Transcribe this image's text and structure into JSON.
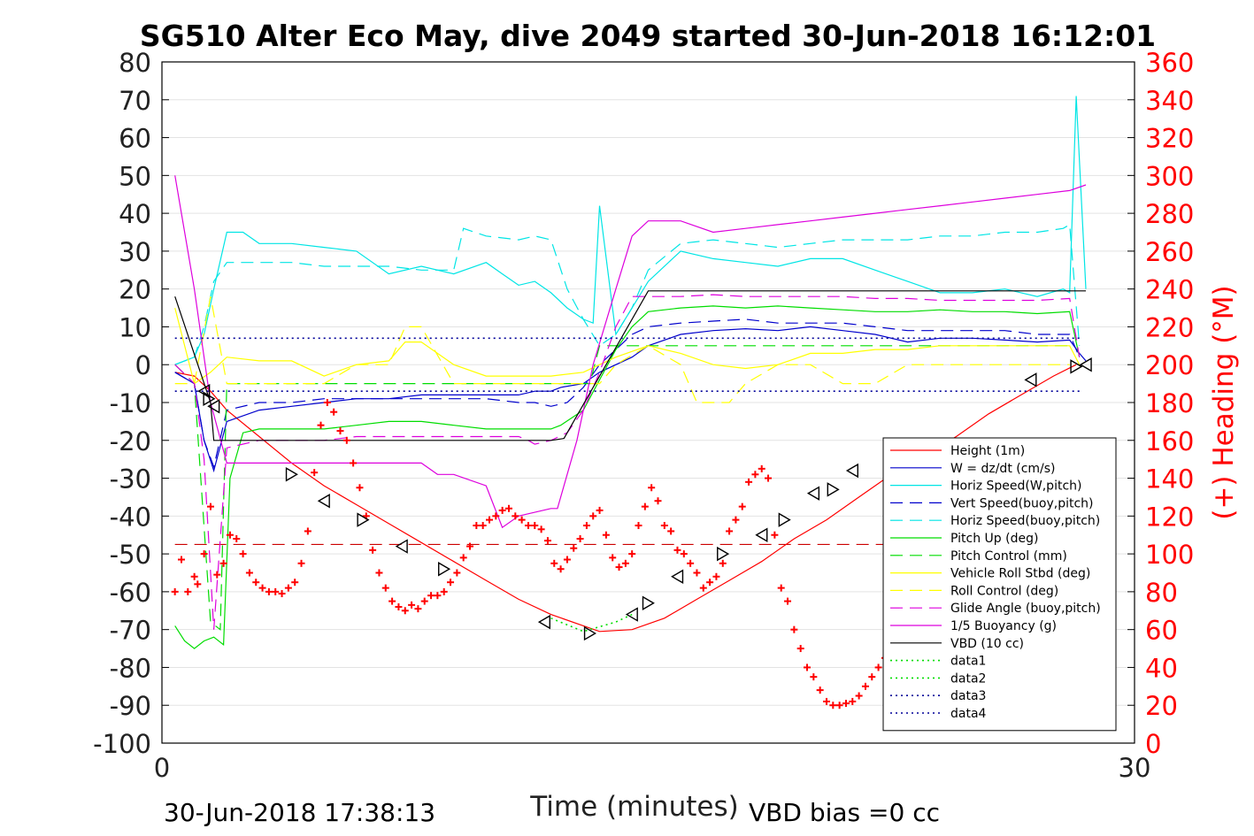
{
  "footer": {
    "timestamp": "30-Jun-2018 17:38:13",
    "vbd_bias": "VBD bias =0 cc"
  },
  "chart_data": {
    "type": "line",
    "title": "SG510 Alter Eco May, dive 2049 started 30-Jun-2018 16:12:01",
    "xlabel": "Time (minutes)",
    "ylabel": "",
    "y2label": "(+) Heading (°M)",
    "xlim": [
      0,
      30
    ],
    "ylim": [
      -100,
      80
    ],
    "y2lim": [
      0,
      360
    ],
    "x_ticks": [
      0,
      30
    ],
    "y_ticks": [
      -100,
      -90,
      -80,
      -70,
      -60,
      -50,
      -40,
      -30,
      -20,
      -10,
      0,
      10,
      20,
      30,
      40,
      50,
      60,
      70,
      80
    ],
    "y2_ticks": [
      0,
      20,
      40,
      60,
      80,
      100,
      120,
      140,
      160,
      180,
      200,
      220,
      240,
      260,
      280,
      300,
      320,
      340,
      360
    ],
    "grid": true,
    "legend_position": "lower-right",
    "colors": {
      "right_axis": "#ff0000",
      "heading_marker": "#ff0000"
    },
    "series": [
      {
        "name": "Height (1m)",
        "color": "#ff0000",
        "dash": "solid",
        "x": [
          0.4,
          1.0,
          1.5,
          2.0,
          3.0,
          4.0,
          5.0,
          6.0,
          7.0,
          8.0,
          9.0,
          10.0,
          11.0,
          12.0,
          13.0,
          13.5,
          14.5,
          15.5,
          16.5,
          17.5,
          18.5,
          19.5,
          20.5,
          21.5,
          22.5,
          23.5,
          24.5,
          25.5,
          26.5,
          27.5,
          28.2
        ],
        "values": [
          -2,
          -3,
          -7,
          -12,
          -19,
          -26,
          -32,
          -37,
          -42,
          -47,
          -52,
          -57,
          -62,
          -66,
          -69,
          -70.5,
          -70,
          -67,
          -62,
          -57,
          -52,
          -46,
          -41,
          -35,
          -29,
          -24,
          -19,
          -13,
          -8,
          -3,
          0
        ]
      },
      {
        "name": "W = dz/dt (cm/s)",
        "color": "#0000cc",
        "dash": "solid",
        "x": [
          0.4,
          1.0,
          1.3,
          1.6,
          2.0,
          3.0,
          4.0,
          5.0,
          6.0,
          7.0,
          8.0,
          9.0,
          10.0,
          11.0,
          11.5,
          12.0,
          12.3,
          13.0,
          13.5,
          14.5,
          15.0,
          16.0,
          17.0,
          18.0,
          19.0,
          20.0,
          21.0,
          22.0,
          23.0,
          24.0,
          25.0,
          26.0,
          27.0,
          28.0,
          28.3,
          28.5
        ],
        "values": [
          -2,
          -5,
          -20,
          -28,
          -15,
          -12,
          -11,
          -10,
          -9,
          -9,
          -8,
          -8,
          -8,
          -8,
          -7,
          -7,
          -6,
          -5,
          -2,
          2,
          5,
          8,
          9,
          9.5,
          9,
          10,
          9,
          8,
          6,
          7,
          7,
          6.5,
          6,
          6.5,
          3,
          1
        ]
      },
      {
        "name": "Horiz Speed(W,pitch)",
        "color": "#00e5e5",
        "dash": "solid",
        "x": [
          0.4,
          1.0,
          1.3,
          1.6,
          2.0,
          2.5,
          3.0,
          4.0,
          5.0,
          6.0,
          7.0,
          8.0,
          9.0,
          10.0,
          10.5,
          11.0,
          11.5,
          12.0,
          12.5,
          13.0,
          13.3,
          13.5,
          14.0,
          14.5,
          15.0,
          16.0,
          17.0,
          18.0,
          19.0,
          20.0,
          21.0,
          22.0,
          23.0,
          24.0,
          25.0,
          26.0,
          27.0,
          27.8,
          28.0,
          28.2,
          28.5
        ],
        "values": [
          0,
          2,
          8,
          20,
          35,
          35,
          32,
          32,
          31,
          30,
          24,
          26,
          24,
          27,
          24,
          21,
          22,
          19,
          15,
          12,
          11,
          42,
          8,
          15,
          22,
          30,
          28,
          27,
          26,
          28,
          28,
          25,
          22,
          19,
          19,
          20,
          18,
          20,
          19,
          71,
          20
        ]
      },
      {
        "name": "Vert Speed(buoy,pitch)",
        "color": "#0000cc",
        "dash": "dashed",
        "x": [
          0.4,
          1.0,
          1.3,
          1.6,
          2.0,
          3.0,
          4.0,
          5.0,
          6.0,
          7.0,
          8.0,
          9.0,
          10.0,
          11.0,
          11.5,
          12.0,
          12.5,
          13.0,
          13.5,
          14.0,
          14.5,
          15.0,
          16.0,
          17.0,
          18.0,
          19.0,
          20.0,
          21.0,
          22.0,
          23.0,
          24.0,
          25.0,
          26.0,
          27.0,
          28.0,
          28.3
        ],
        "values": [
          -2,
          -5,
          -20,
          -27,
          -12,
          -10,
          -10,
          -9,
          -9,
          -9,
          -9,
          -9,
          -9,
          -10,
          -10,
          -11,
          -10,
          -6,
          0,
          4,
          8,
          10,
          11,
          11.5,
          12,
          11,
          11,
          11,
          10,
          9,
          9,
          9,
          9,
          8,
          8,
          2
        ]
      },
      {
        "name": "Horiz Speed(buoy,pitch)",
        "color": "#00e5e5",
        "dash": "dashed",
        "x": [
          0.4,
          1.0,
          1.3,
          1.6,
          2.0,
          3.0,
          4.0,
          5.0,
          6.0,
          7.0,
          8.0,
          9.0,
          9.3,
          10.0,
          11.0,
          11.5,
          12.0,
          12.5,
          13.0,
          13.5,
          14.0,
          14.5,
          15.0,
          16.0,
          17.0,
          18.0,
          19.0,
          20.0,
          21.0,
          22.0,
          23.0,
          24.0,
          25.0,
          26.0,
          27.0,
          27.8,
          28.0,
          28.3
        ],
        "values": [
          0,
          2,
          10,
          22,
          27,
          27,
          27,
          26,
          26,
          26,
          25,
          25,
          36,
          34,
          33,
          34,
          33,
          20,
          12,
          5,
          8,
          15,
          25,
          32,
          33,
          32,
          31,
          32,
          33,
          33,
          33,
          34,
          34,
          35,
          35,
          36,
          37,
          5
        ]
      },
      {
        "name": "Pitch Up (deg)",
        "color": "#00dd00",
        "dash": "solid",
        "x": [
          0.4,
          0.7,
          1.0,
          1.3,
          1.6,
          1.9,
          2.1,
          2.5,
          3.0,
          4.0,
          5.0,
          6.0,
          7.0,
          8.0,
          9.0,
          10.0,
          11.0,
          12.0,
          12.3,
          13.0,
          13.5,
          14.0,
          14.5,
          15.0,
          16.0,
          17.0,
          18.0,
          19.0,
          20.0,
          21.0,
          22.0,
          23.0,
          24.0,
          25.0,
          26.0,
          27.0,
          28.0,
          28.3
        ],
        "values": [
          -69,
          -73,
          -75,
          -73,
          -72,
          -74,
          -30,
          -18,
          -17,
          -17,
          -17,
          -16,
          -15,
          -15,
          -16,
          -17,
          -17,
          -17,
          -16,
          -12,
          -4,
          4,
          10,
          14,
          15,
          15.5,
          15,
          15.5,
          15,
          14.5,
          14,
          14,
          14.5,
          14,
          14,
          13.5,
          14,
          2
        ]
      },
      {
        "name": "Pitch Control (mm)",
        "color": "#00dd00",
        "dash": "dashed",
        "x": [
          0.4,
          1.0,
          1.5,
          1.8,
          2.0,
          3.0,
          6.0,
          9.0,
          12.0,
          13.2,
          13.5,
          16.0,
          20.0,
          24.0,
          28.0
        ],
        "values": [
          0,
          -5,
          -68,
          -70,
          -5,
          -5,
          -5,
          -5,
          -5,
          -5,
          5,
          5,
          5,
          5,
          5
        ]
      },
      {
        "name": "Vehicle Roll Stbd (deg)",
        "color": "#ffff00",
        "dash": "solid",
        "x": [
          0.4,
          1.0,
          1.5,
          2.0,
          3.0,
          4.0,
          5.0,
          6.0,
          7.0,
          7.5,
          8.0,
          9.0,
          10.0,
          11.0,
          12.0,
          13.0,
          13.5,
          14.0,
          15.0,
          16.0,
          17.0,
          18.0,
          19.0,
          20.0,
          21.0,
          22.0,
          23.0,
          24.0,
          25.0,
          26.0,
          27.0,
          28.0,
          28.3
        ],
        "values": [
          15,
          -5,
          -2,
          2,
          1,
          1,
          -3,
          0,
          1,
          6,
          6,
          0,
          -3,
          -3,
          -3,
          -2,
          0,
          2,
          5,
          3,
          0,
          -1,
          0,
          3,
          3,
          4,
          4,
          5,
          5,
          5,
          5,
          5,
          0
        ]
      },
      {
        "name": "Roll Control (deg)",
        "color": "#ffff00",
        "dash": "dashed",
        "x": [
          0.4,
          1.0,
          1.5,
          2.0,
          3.0,
          4.0,
          5.0,
          6.0,
          7.0,
          7.5,
          8.0,
          9.0,
          10.0,
          11.0,
          12.0,
          13.0,
          13.5,
          14.0,
          15.0,
          16.0,
          16.5,
          17.0,
          17.5,
          18.0,
          19.0,
          20.0,
          21.0,
          22.0,
          23.0,
          24.0,
          25.0,
          26.0,
          27.0,
          28.0
        ],
        "values": [
          -5,
          -5,
          18,
          -5,
          -5,
          -5,
          -5,
          0,
          0,
          10,
          10,
          -5,
          -5,
          -5,
          -5,
          -5,
          -5,
          0,
          5,
          0,
          -10,
          -10,
          -10,
          -5,
          0,
          0,
          -5,
          -5,
          0,
          0,
          0,
          0,
          0,
          0
        ]
      },
      {
        "name": "Glide Angle (buoy,pitch)",
        "color": "#dd00dd",
        "dash": "dashed",
        "x": [
          0.4,
          1.0,
          1.3,
          1.6,
          2.0,
          3.0,
          4.0,
          5.0,
          6.0,
          7.0,
          8.0,
          9.0,
          10.0,
          11.0,
          11.3,
          11.5,
          12.0,
          12.5,
          13.0,
          13.5,
          14.0,
          14.5,
          15.0,
          16.0,
          17.0,
          18.0,
          19.0,
          20.0,
          21.0,
          22.0,
          23.0,
          24.0,
          25.0,
          26.0,
          27.0,
          28.0,
          28.3
        ],
        "values": [
          0,
          -5,
          -25,
          -70,
          -22,
          -20,
          -20,
          -20,
          -19,
          -19,
          -19,
          -19,
          -19,
          -19,
          -20,
          -21,
          -20,
          -18,
          -12,
          -2,
          10,
          18,
          18,
          18,
          18.5,
          18,
          18,
          18,
          18,
          17.5,
          17.5,
          17,
          17,
          17,
          17,
          17.5,
          2
        ]
      },
      {
        "name": "1/5 Buoyancy (g)",
        "color": "#dd00dd",
        "dash": "solid",
        "x": [
          0.4,
          1.0,
          1.5,
          2.0,
          2.5,
          3.0,
          4.0,
          5.0,
          6.0,
          7.0,
          8.0,
          8.5,
          9.0,
          10.0,
          10.5,
          11.0,
          12.0,
          12.2,
          12.8,
          13.3,
          14.0,
          14.5,
          15.0,
          16.0,
          17.0,
          18.0,
          19.0,
          20.0,
          21.0,
          22.0,
          23.0,
          24.0,
          25.0,
          26.0,
          27.0,
          28.0,
          28.5
        ],
        "values": [
          50,
          20,
          -10,
          -26,
          -26,
          -26,
          -26,
          -26,
          -26,
          -26,
          -26,
          -29,
          -29,
          -32,
          -43,
          -40,
          -38,
          -38,
          -20,
          0,
          20,
          34,
          38,
          38,
          35,
          36,
          37,
          38,
          39,
          40,
          41,
          42,
          43,
          44,
          45,
          46,
          47.5
        ]
      },
      {
        "name": "VBD (10 cc)",
        "color": "#000000",
        "dash": "solid",
        "x": [
          0.4,
          1.5,
          1.6,
          2.0,
          6.0,
          10.0,
          12.0,
          12.4,
          15.0,
          20.0,
          24.0,
          28.5
        ],
        "values": [
          18,
          -10,
          -20,
          -20,
          -20,
          -20,
          -20,
          -19.5,
          19.5,
          19.5,
          19.5,
          19.5
        ]
      },
      {
        "name": "data1",
        "color": "#00dd00",
        "dash": "dotted",
        "x": [
          12.0,
          13.0,
          14.0,
          14.5
        ],
        "values": [
          -67,
          -70.5,
          -68,
          -66
        ]
      },
      {
        "name": "data2",
        "color": "#00dd00",
        "dash": "dotted",
        "x": [],
        "values": []
      },
      {
        "name": "data3",
        "color": "#000099",
        "dash": "dotted",
        "x": [
          0.4,
          28.3
        ],
        "values": [
          7,
          7
        ]
      },
      {
        "name": "data4",
        "color": "#000099",
        "dash": "dotted",
        "x": [
          0.4,
          28.3
        ],
        "values": [
          -7,
          -7
        ]
      }
    ],
    "reference_lines": [
      {
        "axis": "y2",
        "value": 105,
        "color": "#cc0000",
        "dash": "dashed",
        "x": [
          0.4,
          28.3
        ]
      }
    ],
    "triangle_markers": {
      "color": "#000000",
      "x": [
        1.3,
        1.45,
        1.6,
        4.0,
        5.0,
        6.2,
        7.4,
        8.7,
        11.8,
        13.2,
        14.5,
        15.0,
        15.9,
        17.3,
        18.5,
        19.2,
        20.1,
        20.7,
        21.3,
        22.5,
        26.8,
        28.2,
        28.5
      ],
      "values": [
        -7,
        -9,
        -11,
        -29,
        -36,
        -41,
        -48,
        -54,
        -68,
        -71,
        -66,
        -63,
        -56,
        -50,
        -45,
        -41,
        -34,
        -33,
        -28,
        -28,
        -4,
        -0.5,
        0
      ]
    },
    "heading_series": {
      "name": "(+) Heading",
      "axis": "y2",
      "marker": "+",
      "color": "#ff0000",
      "x": [
        0.4,
        0.6,
        0.8,
        1.0,
        1.1,
        1.3,
        1.5,
        1.7,
        1.9,
        2.1,
        2.3,
        2.5,
        2.7,
        2.9,
        3.1,
        3.3,
        3.5,
        3.7,
        3.9,
        4.1,
        4.3,
        4.5,
        4.7,
        4.9,
        5.1,
        5.3,
        5.5,
        5.7,
        5.9,
        6.1,
        6.3,
        6.5,
        6.7,
        6.9,
        7.1,
        7.3,
        7.5,
        7.7,
        7.9,
        8.1,
        8.3,
        8.5,
        8.7,
        8.9,
        9.1,
        9.3,
        9.5,
        9.7,
        9.9,
        10.1,
        10.3,
        10.5,
        10.7,
        10.9,
        11.1,
        11.3,
        11.5,
        11.7,
        11.9,
        12.1,
        12.3,
        12.5,
        12.7,
        12.9,
        13.1,
        13.3,
        13.5,
        13.7,
        13.9,
        14.1,
        14.3,
        14.5,
        14.7,
        14.9,
        15.1,
        15.3,
        15.5,
        15.7,
        15.9,
        16.1,
        16.3,
        16.5,
        16.7,
        16.9,
        17.1,
        17.3,
        17.5,
        17.7,
        17.9,
        18.1,
        18.3,
        18.5,
        18.7,
        18.9,
        19.1,
        19.3,
        19.5,
        19.7,
        19.9,
        20.1,
        20.3,
        20.5,
        20.7,
        20.9,
        21.1,
        21.3,
        21.5,
        21.7,
        21.9,
        22.1,
        22.3
      ],
      "values": [
        80,
        97,
        80,
        88,
        84,
        100,
        125,
        89,
        95,
        110,
        108,
        100,
        90,
        85,
        82,
        80,
        80,
        79,
        82,
        85,
        95,
        112,
        143,
        168,
        180,
        175,
        165,
        160,
        148,
        135,
        120,
        102,
        90,
        82,
        75,
        72,
        70,
        73,
        71,
        75,
        78,
        78,
        80,
        85,
        90,
        98,
        104,
        115,
        115,
        118,
        120,
        123,
        124,
        120,
        118,
        115,
        115,
        113,
        107,
        95,
        92,
        97,
        103,
        108,
        115,
        120,
        123,
        110,
        98,
        93,
        95,
        100,
        115,
        125,
        135,
        128,
        115,
        112,
        102,
        100,
        95,
        90,
        82,
        85,
        88,
        95,
        112,
        118,
        125,
        138,
        142,
        145,
        140,
        110,
        82,
        75,
        60,
        50,
        40,
        35,
        28,
        22,
        20,
        20,
        21,
        22,
        25,
        30,
        35,
        40,
        45
      ]
    }
  }
}
